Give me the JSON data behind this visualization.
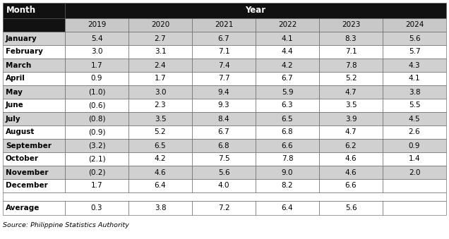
{
  "months": [
    "January",
    "February",
    "March",
    "April",
    "May",
    "June",
    "July",
    "August",
    "September",
    "October",
    "November",
    "December"
  ],
  "years": [
    "2019",
    "2020",
    "2021",
    "2022",
    "2023",
    "2024"
  ],
  "data": [
    [
      "5.4",
      "2.7",
      "6.7",
      "4.1",
      "8.3",
      "5.6"
    ],
    [
      "3.0",
      "3.1",
      "7.1",
      "4.4",
      "7.1",
      "5.7"
    ],
    [
      "1.7",
      "2.4",
      "7.4",
      "4.2",
      "7.8",
      "4.3"
    ],
    [
      "0.9",
      "1.7",
      "7.7",
      "6.7",
      "5.2",
      "4.1"
    ],
    [
      "(1.0)",
      "3.0",
      "9.4",
      "5.9",
      "4.7",
      "3.8"
    ],
    [
      "(0.6)",
      "2.3",
      "9.3",
      "6.3",
      "3.5",
      "5.5"
    ],
    [
      "(0.8)",
      "3.5",
      "8.4",
      "6.5",
      "3.9",
      "4.5"
    ],
    [
      "(0.9)",
      "5.2",
      "6.7",
      "6.8",
      "4.7",
      "2.6"
    ],
    [
      "(3.2)",
      "6.5",
      "6.8",
      "6.6",
      "6.2",
      "0.9"
    ],
    [
      "(2.1)",
      "4.2",
      "7.5",
      "7.8",
      "4.6",
      "1.4"
    ],
    [
      "(0.2)",
      "4.6",
      "5.6",
      "9.0",
      "4.6",
      "2.0"
    ],
    [
      "1.7",
      "6.4",
      "4.0",
      "8.2",
      "6.6",
      ""
    ]
  ],
  "average": [
    "0.3",
    "3.8",
    "7.2",
    "6.4",
    "5.6",
    ""
  ],
  "header_bg": "#111111",
  "year_row_bg": "#c8c8c8",
  "row_bg_odd": "#d0d0d0",
  "row_bg_even": "#ffffff",
  "source_text": "Source: Philippine Statistics Authority"
}
